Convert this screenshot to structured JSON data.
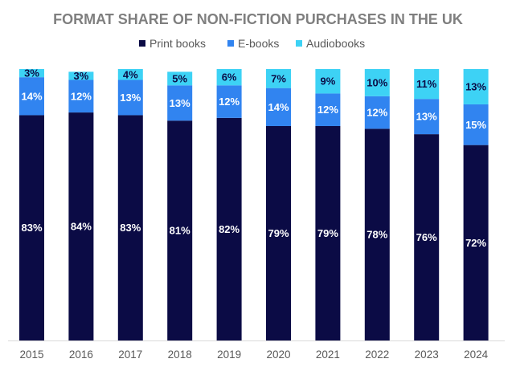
{
  "chart_data": {
    "type": "bar",
    "stacked": true,
    "title": "FORMAT SHARE OF NON-FICTION PURCHASES IN THE UK",
    "xlabel": "",
    "ylabel": "",
    "ylim": [
      0,
      100
    ],
    "grid": false,
    "legend_position": "top-center",
    "categories": [
      "2015",
      "2016",
      "2017",
      "2018",
      "2019",
      "2020",
      "2021",
      "2022",
      "2023",
      "2024"
    ],
    "series": [
      {
        "name": "Print books",
        "color": "#0b0b45",
        "label_color": "#ffffff",
        "values": [
          83,
          84,
          83,
          81,
          82,
          79,
          79,
          78,
          76,
          72
        ],
        "labels": [
          "83%",
          "84%",
          "83%",
          "81%",
          "82%",
          "79%",
          "79%",
          "78%",
          "76%",
          "72%"
        ]
      },
      {
        "name": "E-books",
        "color": "#3184f0",
        "label_color": "#ffffff",
        "values": [
          14,
          12,
          13,
          13,
          12,
          14,
          12,
          12,
          13,
          15
        ],
        "labels": [
          "14%",
          "12%",
          "13%",
          "13%",
          "12%",
          "14%",
          "12%",
          "12%",
          "13%",
          "15%"
        ]
      },
      {
        "name": "Audiobooks",
        "color": "#3dd2f5",
        "label_color": "#0b0b45",
        "values": [
          3,
          3,
          4,
          5,
          6,
          7,
          9,
          10,
          11,
          13
        ],
        "labels": [
          "3%",
          "3%",
          "4%",
          "5%",
          "6%",
          "7%",
          "9%",
          "10%",
          "11%",
          "13%"
        ]
      }
    ]
  }
}
